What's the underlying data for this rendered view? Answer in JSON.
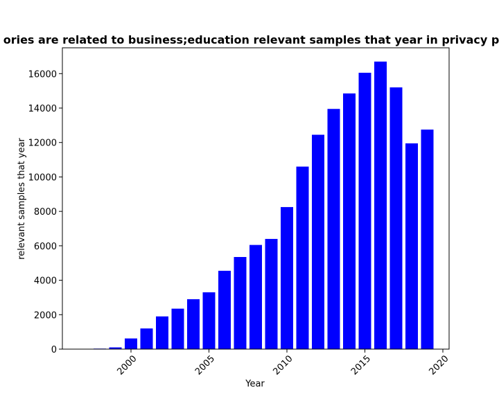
{
  "chart_data": {
    "type": "bar",
    "title": "ories are related to business;education relevant samples that year in privacy po",
    "xlabel": "Year",
    "ylabel": "relevant samples that year",
    "bar_color": "#0000ff",
    "xlim": [
      1995.6,
      2020.4
    ],
    "ylim": [
      0,
      17500
    ],
    "xticks": [
      2000,
      2005,
      2010,
      2015,
      2020
    ],
    "yticks": [
      0,
      2000,
      4000,
      6000,
      8000,
      10000,
      12000,
      14000,
      16000
    ],
    "grid": false,
    "x": [
      1998,
      1999,
      2000,
      2001,
      2002,
      2003,
      2004,
      2005,
      2006,
      2007,
      2008,
      2009,
      2010,
      2011,
      2012,
      2013,
      2014,
      2015,
      2016,
      2017,
      2018,
      2019
    ],
    "values": [
      30,
      100,
      620,
      1200,
      1900,
      2350,
      2900,
      3300,
      4550,
      5350,
      6050,
      6400,
      8250,
      10600,
      12450,
      13950,
      14850,
      16050,
      16700,
      15200,
      11950,
      12750
    ]
  }
}
